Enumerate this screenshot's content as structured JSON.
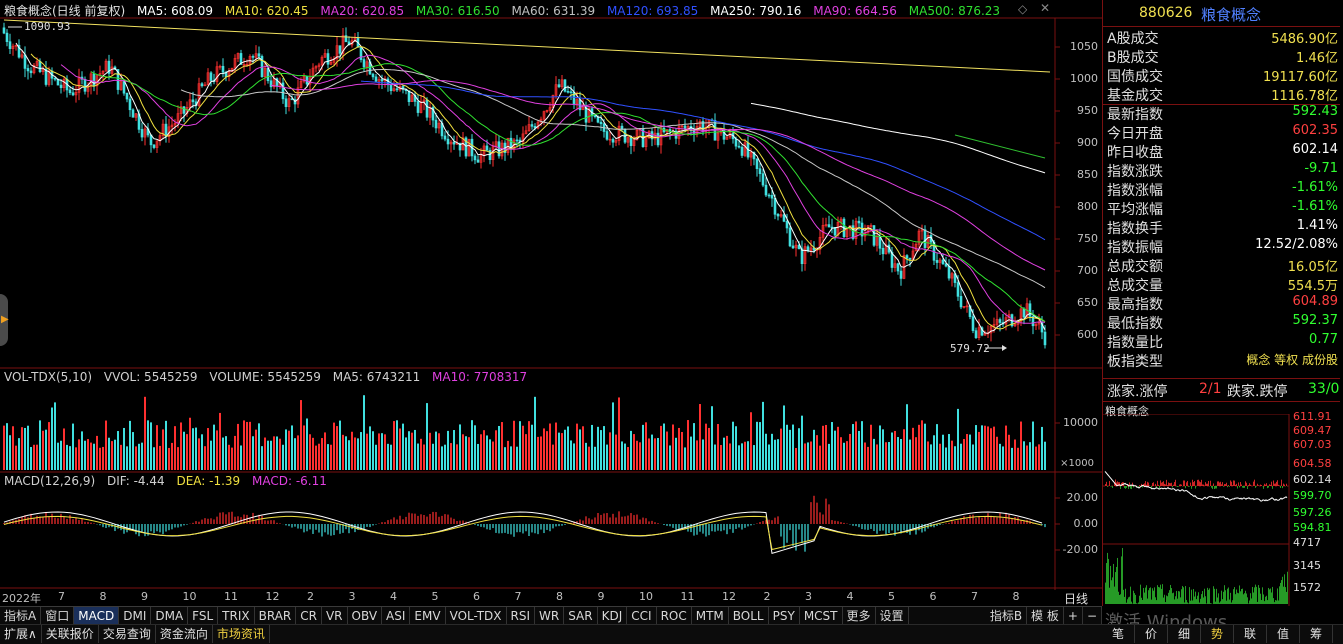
{
  "header": {
    "title": "粮食概念(日线 前复权)",
    "ma": [
      {
        "label": "MA5: 608.09",
        "color": "#ffffff"
      },
      {
        "label": "MA10: 620.45",
        "color": "#f0e040"
      },
      {
        "label": "MA20: 620.85",
        "color": "#e040e0"
      },
      {
        "label": "MA30: 616.50",
        "color": "#30e030"
      },
      {
        "label": "MA60: 631.39",
        "color": "#c0c0c0"
      },
      {
        "label": "MA120: 693.85",
        "color": "#3050ff"
      },
      {
        "label": "MA250: 790.16",
        "color": "#ffffff"
      },
      {
        "label": "MA90: 664.56",
        "color": "#e040e0"
      },
      {
        "label": "MA500: 876.23",
        "color": "#30e030"
      }
    ]
  },
  "price_axis": [
    "1050",
    "1000",
    "950",
    "900",
    "850",
    "800",
    "750",
    "700",
    "650",
    "600"
  ],
  "annotations": {
    "high": "1090.93",
    "low": "579.72"
  },
  "volume_panel": {
    "legend": [
      {
        "label": "VOL-TDX(5,10)",
        "color": "#d0d0d0"
      },
      {
        "label": "VVOL: 5545259",
        "color": "#d0d0d0"
      },
      {
        "label": "VOLUME: 5545259",
        "color": "#d0d0d0"
      },
      {
        "label": "MA5: 6743211",
        "color": "#d0d0d0"
      },
      {
        "label": "MA10: 7708317",
        "color": "#e040e0"
      }
    ],
    "axis": [
      "10000"
    ],
    "unit": "×1000"
  },
  "macd_panel": {
    "legend": [
      {
        "label": "MACD(12,26,9)",
        "color": "#d0d0d0"
      },
      {
        "label": "DIF: -4.44",
        "color": "#d0d0d0"
      },
      {
        "label": "DEA: -1.39",
        "color": "#f0e040"
      },
      {
        "label": "MACD: -6.11",
        "color": "#e040e0"
      }
    ],
    "axis": [
      "20.00",
      "0.00",
      "-20.00"
    ]
  },
  "date_axis": {
    "year_label": "2022年",
    "months": [
      "7",
      "8",
      "9",
      "10",
      "11",
      "12",
      "2",
      "3",
      "4",
      "5",
      "6",
      "7",
      "8",
      "9",
      "10",
      "11",
      "12",
      "2",
      "3",
      "4",
      "5",
      "6",
      "7",
      "8"
    ],
    "period": "日线"
  },
  "indicator_tabs": [
    "指标A",
    "窗口",
    "MACD",
    "DMI",
    "DMA",
    "FSL",
    "TRIX",
    "BRAR",
    "CR",
    "VR",
    "OBV",
    "ASI",
    "EMV",
    "VOL-TDX",
    "RSI",
    "WR",
    "SAR",
    "KDJ",
    "CCI",
    "ROC",
    "MTM",
    "BOLL",
    "PSY",
    "MCST",
    "更多",
    "设置"
  ],
  "indicator_tabs_right": [
    "指标B",
    "模 板",
    "+",
    "−"
  ],
  "bottom_tabs": [
    "扩展∧",
    "关联报价",
    "交易查询",
    "资金流向",
    "市场资讯"
  ],
  "right_panel": {
    "code": "880626",
    "name": "粮食概念",
    "rows": [
      {
        "label": "A股成交",
        "value": "5486.90亿",
        "cls": "yellow"
      },
      {
        "label": "B股成交",
        "value": "1.46亿",
        "cls": "yellow"
      },
      {
        "label": "国债成交",
        "value": "19117.60亿",
        "cls": "yellow"
      },
      {
        "label": "基金成交",
        "value": "1116.78亿",
        "cls": "yellow"
      },
      {
        "label": "最新指数",
        "value": "592.43",
        "cls": "green"
      },
      {
        "label": "今日开盘",
        "value": "602.35",
        "cls": "red"
      },
      {
        "label": "昨日收盘",
        "value": "602.14",
        "cls": "white"
      },
      {
        "label": "指数涨跌",
        "value": "-9.71",
        "cls": "green"
      },
      {
        "label": "指数涨幅",
        "value": "-1.61%",
        "cls": "green"
      },
      {
        "label": "平均涨幅",
        "value": "-1.61%",
        "cls": "green"
      },
      {
        "label": "指数换手",
        "value": "1.41%",
        "cls": "white"
      },
      {
        "label": "指数振幅",
        "value": "12.52/2.08%",
        "cls": "white"
      },
      {
        "label": "总成交额",
        "value": "16.05亿",
        "cls": "yellow"
      },
      {
        "label": "总成交量",
        "value": "554.5万",
        "cls": "yellow"
      },
      {
        "label": "最高指数",
        "value": "604.89",
        "cls": "red"
      },
      {
        "label": "最低指数",
        "value": "592.37",
        "cls": "green"
      },
      {
        "label": "指数量比",
        "value": "0.77",
        "cls": "green"
      },
      {
        "label": "板指类型",
        "value": "概念 等权 成份股",
        "cls": "yellow"
      }
    ],
    "limit_row": {
      "up_label": "涨家.涨停",
      "up_val": "2/1",
      "down_label": "跌家.跌停",
      "down_val": "33/0"
    },
    "mini_title": "粮食概念",
    "mini_axis": [
      "611.91",
      "609.47",
      "607.03",
      "604.58",
      "602.14",
      "599.70",
      "597.26",
      "594.81",
      "4717",
      "3145",
      "1572"
    ],
    "mini_tabs": [
      "笔",
      "价",
      "细",
      "势",
      "联",
      "值",
      "筹"
    ]
  },
  "watermark": "激活 Windows"
}
